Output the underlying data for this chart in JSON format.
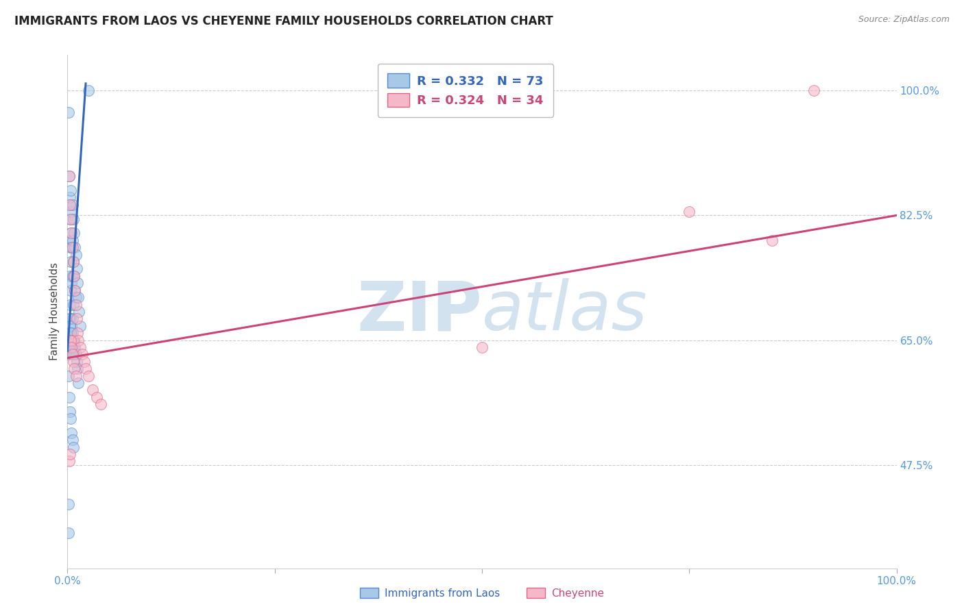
{
  "title": "IMMIGRANTS FROM LAOS VS CHEYENNE FAMILY HOUSEHOLDS CORRELATION CHART",
  "source": "Source: ZipAtlas.com",
  "ylabel": "Family Households",
  "legend_label_blue": "Immigrants from Laos",
  "legend_label_pink": "Cheyenne",
  "blue_color": "#a8c8e8",
  "pink_color": "#f4b8c8",
  "blue_line_color": "#3366bb",
  "pink_line_color": "#cc4477",
  "blue_edge_color": "#5588cc",
  "pink_edge_color": "#dd6688",
  "watermark_color": "#ccdded",
  "grid_color": "#cccccc",
  "axis_tick_color": "#5599dd",
  "title_color": "#222222",
  "source_color": "#888888",
  "legend_text_blue": "R = 0.332   N = 73",
  "legend_text_pink": "R = 0.324   N = 34",
  "ytick_values": [
    0.475,
    0.65,
    0.825,
    1.0
  ],
  "ytick_labels": [
    "47.5%",
    "65.0%",
    "82.5%",
    "100.0%"
  ],
  "xlim": [
    0.0,
    1.0
  ],
  "ylim": [
    0.33,
    1.05
  ],
  "blue_x": [
    0.001,
    0.002,
    0.002,
    0.002,
    0.003,
    0.003,
    0.003,
    0.003,
    0.003,
    0.004,
    0.004,
    0.004,
    0.004,
    0.004,
    0.005,
    0.005,
    0.005,
    0.005,
    0.006,
    0.006,
    0.006,
    0.006,
    0.007,
    0.007,
    0.007,
    0.008,
    0.008,
    0.009,
    0.009,
    0.01,
    0.01,
    0.011,
    0.012,
    0.013,
    0.014,
    0.015,
    0.001,
    0.002,
    0.002,
    0.002,
    0.003,
    0.003,
    0.003,
    0.004,
    0.004,
    0.004,
    0.005,
    0.005,
    0.005,
    0.006,
    0.006,
    0.007,
    0.007,
    0.008,
    0.008,
    0.009,
    0.01,
    0.011,
    0.012,
    0.013,
    0.001,
    0.002,
    0.003,
    0.004,
    0.005,
    0.006,
    0.007,
    0.002,
    0.003,
    0.004,
    0.025,
    0.001,
    0.001
  ],
  "blue_y": [
    0.97,
    0.88,
    0.84,
    0.79,
    0.85,
    0.82,
    0.78,
    0.74,
    0.7,
    0.86,
    0.8,
    0.76,
    0.72,
    0.68,
    0.83,
    0.78,
    0.73,
    0.67,
    0.84,
    0.79,
    0.74,
    0.68,
    0.82,
    0.76,
    0.7,
    0.8,
    0.74,
    0.78,
    0.72,
    0.77,
    0.71,
    0.75,
    0.73,
    0.71,
    0.69,
    0.67,
    0.66,
    0.65,
    0.64,
    0.63,
    0.66,
    0.65,
    0.64,
    0.66,
    0.65,
    0.64,
    0.66,
    0.65,
    0.64,
    0.66,
    0.63,
    0.65,
    0.64,
    0.65,
    0.63,
    0.64,
    0.63,
    0.62,
    0.61,
    0.59,
    0.6,
    0.57,
    0.55,
    0.54,
    0.52,
    0.51,
    0.5,
    0.68,
    0.67,
    0.66,
    1.0,
    0.38,
    0.42
  ],
  "pink_x": [
    0.002,
    0.003,
    0.004,
    0.005,
    0.005,
    0.006,
    0.007,
    0.007,
    0.008,
    0.009,
    0.01,
    0.011,
    0.012,
    0.013,
    0.015,
    0.018,
    0.02,
    0.022,
    0.025,
    0.03,
    0.035,
    0.04,
    0.002,
    0.003,
    0.004,
    0.005,
    0.006,
    0.007,
    0.008,
    0.01,
    0.5,
    0.75,
    0.9,
    0.85
  ],
  "pink_y": [
    0.88,
    0.84,
    0.82,
    0.8,
    0.65,
    0.78,
    0.76,
    0.65,
    0.74,
    0.72,
    0.7,
    0.68,
    0.66,
    0.65,
    0.64,
    0.63,
    0.62,
    0.61,
    0.6,
    0.58,
    0.57,
    0.56,
    0.48,
    0.49,
    0.65,
    0.64,
    0.63,
    0.62,
    0.61,
    0.6,
    0.64,
    0.83,
    1.0,
    0.79
  ],
  "blue_trend_x": [
    0.0,
    0.022
  ],
  "blue_trend_y": [
    0.635,
    1.01
  ],
  "pink_trend_x": [
    0.0,
    1.0
  ],
  "pink_trend_y": [
    0.625,
    0.825
  ],
  "title_fontsize": 12,
  "label_fontsize": 11,
  "tick_fontsize": 11,
  "legend_fontsize": 13
}
